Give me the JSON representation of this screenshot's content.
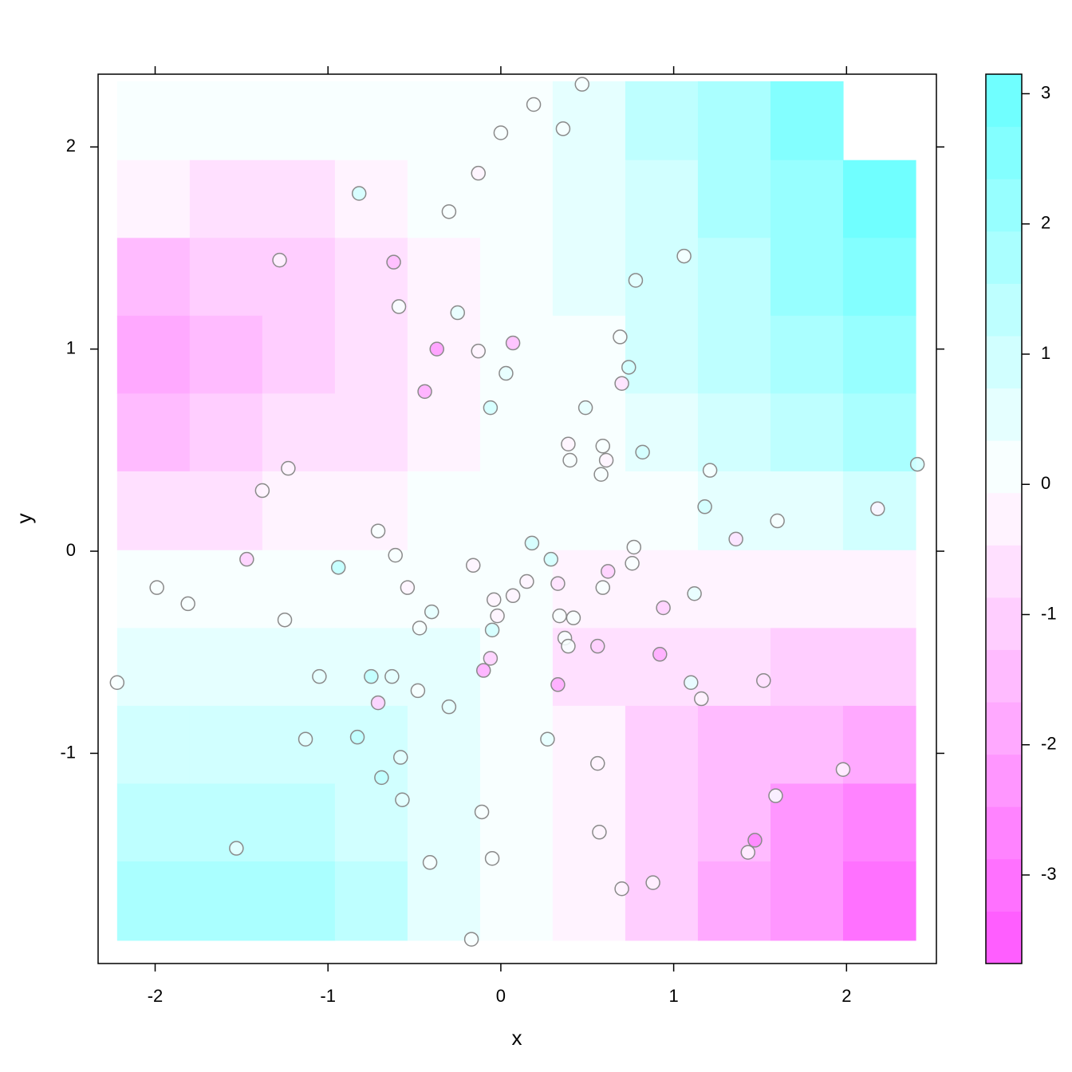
{
  "chart_data": {
    "type": "levelplot",
    "xlabel": "x",
    "ylabel": "y",
    "xlim": [
      -2.33,
      2.52
    ],
    "ylim": [
      -2.04,
      2.36
    ],
    "xticks": [
      -2,
      -1,
      0,
      1,
      2
    ],
    "yticks": [
      -1,
      0,
      1,
      2
    ],
    "zlim": [
      -3.68,
      3.15
    ],
    "zticks": [
      -3,
      -2,
      -1,
      0,
      1,
      2,
      3
    ],
    "cuts": 17,
    "colors": {
      "low": "#ff55ff",
      "mid": "#ffffff",
      "high": "#66ffff"
    },
    "surface": {
      "x": [
        -2.01,
        -1.59,
        -1.17,
        -0.75,
        -0.33,
        0.09,
        0.51,
        0.93,
        1.35,
        1.77,
        2.19
      ],
      "y": [
        2.13,
        1.74,
        1.36,
        0.97,
        0.59,
        0.2,
        -0.19,
        -0.57,
        -0.96,
        -1.34,
        -1.73
      ],
      "z": [
        [
          0.2,
          0.2,
          0.2,
          0.2,
          0.2,
          0.3,
          0.6,
          1.2,
          1.8,
          2.5,
          null
        ],
        [
          -0.4,
          -0.6,
          -0.5,
          -0.3,
          0.0,
          0.2,
          0.5,
          1.1,
          1.7,
          2.3,
          2.8
        ],
        [
          -1.3,
          -1.1,
          -0.9,
          -0.6,
          -0.2,
          0.1,
          0.4,
          0.9,
          1.5,
          2.0,
          2.6
        ],
        [
          -1.8,
          -1.4,
          -1.1,
          -0.7,
          -0.3,
          0.05,
          0.3,
          0.8,
          1.2,
          1.7,
          2.2
        ],
        [
          -1.5,
          -1.1,
          -0.8,
          -0.5,
          -0.2,
          0.05,
          0.25,
          0.6,
          0.9,
          1.3,
          1.6
        ],
        [
          -0.8,
          -0.6,
          -0.4,
          -0.2,
          0.0,
          0.05,
          0.2,
          0.3,
          0.5,
          0.7,
          0.8
        ],
        [
          0.0,
          0.0,
          0.1,
          0.2,
          0.2,
          0.05,
          -0.2,
          -0.2,
          -0.1,
          -0.2,
          -0.3
        ],
        [
          0.5,
          0.6,
          0.6,
          0.6,
          0.5,
          0.1,
          -0.5,
          -0.7,
          -0.8,
          -1.0,
          -1.2
        ],
        [
          0.9,
          1.0,
          1.1,
          1.0,
          0.6,
          0.1,
          -0.4,
          -1.0,
          -1.3,
          -1.6,
          -1.9
        ],
        [
          1.3,
          1.4,
          1.3,
          1.1,
          0.6,
          0.1,
          -0.4,
          -1.1,
          -1.6,
          -2.1,
          -2.5
        ],
        [
          1.6,
          1.8,
          1.6,
          1.3,
          0.7,
          0.2,
          -0.4,
          -1.1,
          -1.7,
          -2.4,
          -3.0
        ]
      ]
    },
    "x": [
      0.47,
      0.19,
      0.0,
      0.36,
      -0.13,
      -0.82,
      -0.3,
      -1.28,
      -0.62,
      1.06,
      0.78,
      -0.59,
      -0.25,
      -0.37,
      -0.13,
      0.07,
      0.03,
      0.69,
      -0.44,
      0.74,
      0.7,
      -0.06,
      0.49,
      0.39,
      0.59,
      0.4,
      0.61,
      0.82,
      0.58,
      -1.23,
      -1.38,
      1.21,
      1.18,
      1.6,
      2.41,
      2.18,
      1.36,
      -0.71,
      -0.61,
      0.18,
      0.29,
      0.77,
      0.76,
      -0.16,
      -0.94,
      -1.47,
      -1.99,
      -1.81,
      -0.54,
      0.15,
      0.33,
      0.07,
      -0.04,
      0.59,
      0.62,
      1.12,
      0.94,
      -0.4,
      -0.02,
      0.34,
      0.42,
      -1.25,
      -0.47,
      -0.05,
      0.37,
      0.39,
      0.56,
      0.92,
      -0.06,
      -0.1,
      -1.05,
      -0.75,
      -0.63,
      0.33,
      -0.48,
      -0.71,
      -2.22,
      1.1,
      1.52,
      1.16,
      -0.3,
      -1.13,
      -0.83,
      0.27,
      -0.58,
      0.56,
      1.98,
      -0.69,
      -0.57,
      1.59,
      -0.11,
      0.57,
      1.47,
      1.43,
      -1.53,
      -0.05,
      -0.41,
      0.7,
      0.88,
      -0.17
    ],
    "y": [
      2.31,
      2.21,
      2.07,
      2.09,
      1.87,
      1.77,
      1.68,
      1.44,
      1.43,
      1.46,
      1.34,
      1.21,
      1.18,
      1.0,
      0.99,
      1.03,
      0.88,
      1.06,
      0.79,
      0.91,
      0.83,
      0.71,
      0.71,
      0.53,
      0.52,
      0.45,
      0.45,
      0.49,
      0.38,
      0.41,
      0.3,
      0.4,
      0.22,
      0.15,
      0.43,
      0.21,
      0.06,
      0.1,
      -0.02,
      0.04,
      -0.04,
      0.02,
      -0.06,
      -0.07,
      -0.08,
      -0.04,
      -0.18,
      -0.26,
      -0.18,
      -0.15,
      -0.16,
      -0.22,
      -0.24,
      -0.18,
      -0.1,
      -0.21,
      -0.28,
      -0.3,
      -0.32,
      -0.32,
      -0.33,
      -0.34,
      -0.38,
      -0.39,
      -0.43,
      -0.47,
      -0.47,
      -0.51,
      -0.53,
      -0.59,
      -0.62,
      -0.62,
      -0.62,
      -0.66,
      -0.69,
      -0.75,
      -0.65,
      -0.65,
      -0.64,
      -0.73,
      -0.77,
      -0.93,
      -0.92,
      -0.93,
      -1.02,
      -1.05,
      -1.08,
      -1.12,
      -1.23,
      -1.21,
      -1.29,
      -1.39,
      -1.43,
      -1.49,
      -1.47,
      -1.52,
      -1.54,
      -1.67,
      -1.64,
      -1.92
    ],
    "z": [
      0.2,
      0.3,
      0.1,
      0.2,
      -0.3,
      1.0,
      0.1,
      -0.3,
      -1.3,
      0.3,
      0.5,
      0.3,
      0.4,
      -2.2,
      -0.2,
      -1.3,
      0.4,
      0.3,
      -2.0,
      1.0,
      -0.7,
      0.8,
      0.6,
      -0.3,
      0.1,
      0.3,
      -0.3,
      0.8,
      0.2,
      -0.3,
      -0.2,
      0.3,
      0.9,
      0.1,
      0.8,
      -0.3,
      -0.8,
      0.2,
      0.3,
      1.0,
      0.8,
      0.1,
      0.3,
      -0.2,
      1.5,
      -1.2,
      0.1,
      0.1,
      -0.2,
      -0.2,
      -0.7,
      -0.2,
      -0.3,
      0.3,
      -1.2,
      0.6,
      -0.9,
      0.5,
      -0.3,
      0.3,
      0.3,
      0.3,
      0.2,
      1.0,
      0.3,
      0.3,
      -1.2,
      -1.8,
      -1.2,
      -2.0,
      0.4,
      1.3,
      0.5,
      -2.0,
      0.2,
      -1.0,
      0.1,
      0.6,
      -0.5,
      -0.3,
      0.6,
      0.4,
      1.3,
      0.5,
      0.7,
      -0.2,
      -0.4,
      1.3,
      0.6,
      0.1,
      0.1,
      -0.2,
      -2.7,
      -0.4,
      0.7,
      0.2,
      0.3,
      -0.4,
      -0.3,
      0.1
    ]
  }
}
